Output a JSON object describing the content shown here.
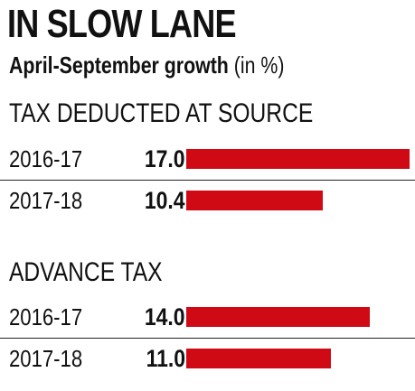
{
  "title": "IN SLOW LANE",
  "subtitle": "April-September growth",
  "subtitle_unit": "(in %)",
  "chart_data": [
    {
      "type": "bar",
      "orientation": "horizontal",
      "title": "TAX DEDUCTED AT SOURCE",
      "categories": [
        "2016-17",
        "2017-18"
      ],
      "values_label": [
        "17.0",
        "10.4"
      ],
      "values": [
        17.0,
        10.4
      ],
      "xlim": [
        0,
        17.0
      ],
      "color": "#d00a14"
    },
    {
      "type": "bar",
      "orientation": "horizontal",
      "title": "ADVANCE TAX",
      "categories": [
        "2016-17",
        "2017-18"
      ],
      "values_label": [
        "14.0",
        "11.0"
      ],
      "values": [
        14.0,
        11.0
      ],
      "xlim": [
        0,
        17.0
      ],
      "color": "#d00a14"
    }
  ]
}
